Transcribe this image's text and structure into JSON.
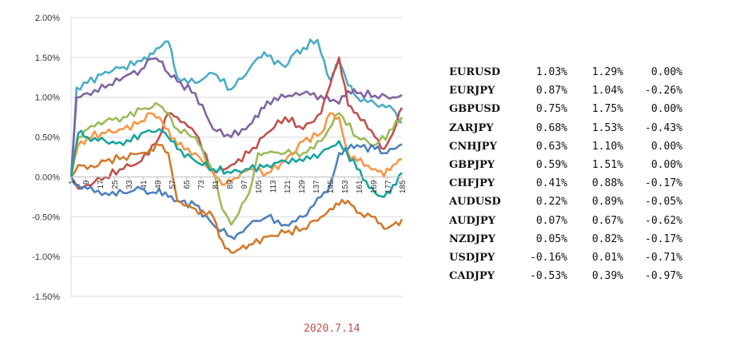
{
  "chart_data": {
    "type": "line",
    "ylim": [
      -1.5,
      2.0
    ],
    "ytick_labels": [
      "2.00%",
      "1.50%",
      "1.00%",
      "0.50%",
      "0.00%",
      "-0.50%",
      "-1.00%",
      "-1.50%"
    ],
    "ytick_values": [
      2.0,
      1.5,
      1.0,
      0.5,
      0.0,
      -0.5,
      -1.0,
      -1.5
    ],
    "xlim": [
      1,
      185
    ],
    "xtick_labels": [
      "1",
      "9",
      "17",
      "25",
      "33",
      "41",
      "49",
      "57",
      "65",
      "73",
      "81",
      "89",
      "97",
      "105",
      "113",
      "121",
      "129",
      "137",
      "145",
      "153",
      "161",
      "169",
      "177",
      "185"
    ],
    "grid": "horizontal",
    "series": [
      {
        "color": "#4bacc6",
        "x": [
          1,
          4,
          10,
          20,
          30,
          40,
          45,
          50,
          55,
          60,
          70,
          80,
          90,
          100,
          105,
          110,
          120,
          125,
          130,
          138,
          140,
          145,
          150,
          155,
          160,
          170,
          180,
          185
        ],
        "values": [
          0.0,
          1.12,
          1.18,
          1.32,
          1.38,
          1.45,
          1.55,
          1.62,
          1.7,
          1.25,
          1.18,
          1.3,
          1.1,
          1.35,
          1.5,
          1.52,
          1.38,
          1.55,
          1.62,
          1.72,
          1.55,
          1.22,
          1.45,
          1.15,
          1.0,
          0.92,
          0.85,
          0.68
        ]
      },
      {
        "color": "#8064a2",
        "x": [
          1,
          4,
          10,
          20,
          30,
          40,
          45,
          50,
          55,
          60,
          70,
          80,
          90,
          100,
          105,
          110,
          120,
          130,
          140,
          145,
          150,
          155,
          160,
          170,
          180,
          185
        ],
        "values": [
          0.0,
          1.0,
          1.05,
          1.12,
          1.25,
          1.35,
          1.48,
          1.45,
          1.3,
          1.2,
          1.05,
          0.6,
          0.5,
          0.65,
          0.75,
          0.95,
          1.0,
          1.05,
          1.02,
          0.95,
          0.92,
          1.08,
          1.05,
          1.02,
          1.0,
          1.03
        ]
      },
      {
        "color": "#c0504d",
        "x": [
          1,
          5,
          10,
          20,
          30,
          40,
          50,
          55,
          60,
          70,
          80,
          90,
          100,
          110,
          120,
          130,
          140,
          145,
          150,
          155,
          160,
          170,
          175,
          180,
          185
        ],
        "values": [
          0.0,
          -0.15,
          -0.1,
          0.0,
          0.1,
          0.2,
          0.5,
          0.8,
          0.75,
          0.55,
          0.05,
          0.15,
          0.3,
          0.55,
          0.75,
          0.6,
          0.8,
          1.15,
          1.5,
          0.9,
          0.8,
          0.5,
          0.35,
          0.55,
          0.87
        ]
      },
      {
        "color": "#9bbb59",
        "x": [
          1,
          5,
          10,
          20,
          30,
          40,
          50,
          55,
          60,
          70,
          80,
          85,
          90,
          100,
          105,
          110,
          120,
          130,
          140,
          150,
          160,
          170,
          180,
          185
        ],
        "values": [
          0.0,
          0.5,
          0.6,
          0.7,
          0.75,
          0.85,
          0.9,
          0.8,
          0.6,
          0.5,
          0.05,
          -0.4,
          -0.6,
          -0.2,
          0.3,
          0.3,
          0.3,
          0.3,
          0.45,
          0.8,
          0.5,
          0.4,
          0.6,
          0.75
        ]
      },
      {
        "color": "#f79646",
        "x": [
          1,
          5,
          10,
          20,
          30,
          40,
          45,
          50,
          55,
          60,
          70,
          80,
          85,
          90,
          100,
          110,
          120,
          130,
          140,
          145,
          150,
          155,
          160,
          170,
          175,
          180,
          185
        ],
        "values": [
          0.0,
          0.4,
          0.5,
          0.55,
          0.6,
          0.7,
          0.8,
          0.75,
          0.6,
          0.4,
          0.3,
          0.05,
          -0.1,
          -0.05,
          0.1,
          0.05,
          0.2,
          0.45,
          0.55,
          0.8,
          0.75,
          0.3,
          0.2,
          0.1,
          0.0,
          0.15,
          0.22
        ]
      },
      {
        "color": "#4f81bd",
        "x": [
          1,
          5,
          10,
          20,
          30,
          40,
          45,
          50,
          55,
          60,
          70,
          80,
          90,
          95,
          100,
          110,
          120,
          130,
          140,
          145,
          150,
          155,
          160,
          170,
          175,
          180,
          185
        ],
        "values": [
          0.0,
          -0.1,
          -0.15,
          -0.2,
          -0.2,
          -0.15,
          -0.2,
          -0.15,
          -0.25,
          -0.3,
          -0.35,
          -0.6,
          -0.75,
          -0.7,
          -0.6,
          -0.5,
          -0.6,
          -0.5,
          -0.25,
          -0.1,
          0.3,
          0.35,
          0.4,
          0.35,
          0.3,
          0.35,
          0.41
        ]
      },
      {
        "color": "#d07a2c",
        "x": [
          1,
          5,
          10,
          20,
          30,
          40,
          45,
          50,
          55,
          60,
          70,
          80,
          85,
          90,
          95,
          100,
          110,
          120,
          130,
          140,
          145,
          150,
          155,
          160,
          170,
          175,
          180,
          185
        ],
        "values": [
          0.0,
          0.15,
          0.1,
          0.2,
          0.25,
          0.3,
          0.35,
          0.4,
          0.3,
          -0.3,
          -0.4,
          -0.5,
          -0.8,
          -0.95,
          -0.9,
          -0.85,
          -0.75,
          -0.7,
          -0.65,
          -0.5,
          -0.4,
          -0.35,
          -0.3,
          -0.45,
          -0.5,
          -0.65,
          -0.6,
          -0.53
        ]
      },
      {
        "color": "#17a5a0",
        "x": [
          1,
          5,
          10,
          20,
          30,
          40,
          50,
          55,
          60,
          70,
          80,
          90,
          100,
          110,
          120,
          130,
          140,
          150,
          160,
          165,
          170,
          175,
          180,
          185
        ],
        "values": [
          0.0,
          0.55,
          0.5,
          0.45,
          0.4,
          0.55,
          0.6,
          0.5,
          0.35,
          0.2,
          0.1,
          0.05,
          0.1,
          0.15,
          0.2,
          0.2,
          0.3,
          0.45,
          0.1,
          -0.05,
          -0.2,
          -0.25,
          -0.1,
          0.05
        ]
      }
    ]
  },
  "date_label": "2020.7.14",
  "table": {
    "rows": [
      {
        "pair": "EURUSD",
        "v1": "1.03%",
        "v2": "1.29%",
        "v3": "0.00%"
      },
      {
        "pair": "EURJPY",
        "v1": "0.87%",
        "v2": "1.04%",
        "v3": "-0.26%"
      },
      {
        "pair": "GBPUSD",
        "v1": "0.75%",
        "v2": "1.75%",
        "v3": "0.00%"
      },
      {
        "pair": "ZARJPY",
        "v1": "0.68%",
        "v2": "1.53%",
        "v3": "-0.43%"
      },
      {
        "pair": "CNHJPY",
        "v1": "0.63%",
        "v2": "1.10%",
        "v3": "0.00%"
      },
      {
        "pair": "GBPJPY",
        "v1": "0.59%",
        "v2": "1.51%",
        "v3": "0.00%"
      },
      {
        "pair": "CHFJPY",
        "v1": "0.41%",
        "v2": "0.88%",
        "v3": "-0.17%"
      },
      {
        "pair": "AUDUSD",
        "v1": "0.22%",
        "v2": "0.89%",
        "v3": "-0.05%"
      },
      {
        "pair": "AUDJPY",
        "v1": "0.07%",
        "v2": "0.67%",
        "v3": "-0.62%"
      },
      {
        "pair": "NZDJPY",
        "v1": "0.05%",
        "v2": "0.82%",
        "v3": "-0.17%"
      },
      {
        "pair": "USDJPY",
        "v1": "-0.16%",
        "v2": "0.01%",
        "v3": "-0.71%"
      },
      {
        "pair": "CADJPY",
        "v1": "-0.53%",
        "v2": "0.39%",
        "v3": "-0.97%"
      }
    ]
  }
}
